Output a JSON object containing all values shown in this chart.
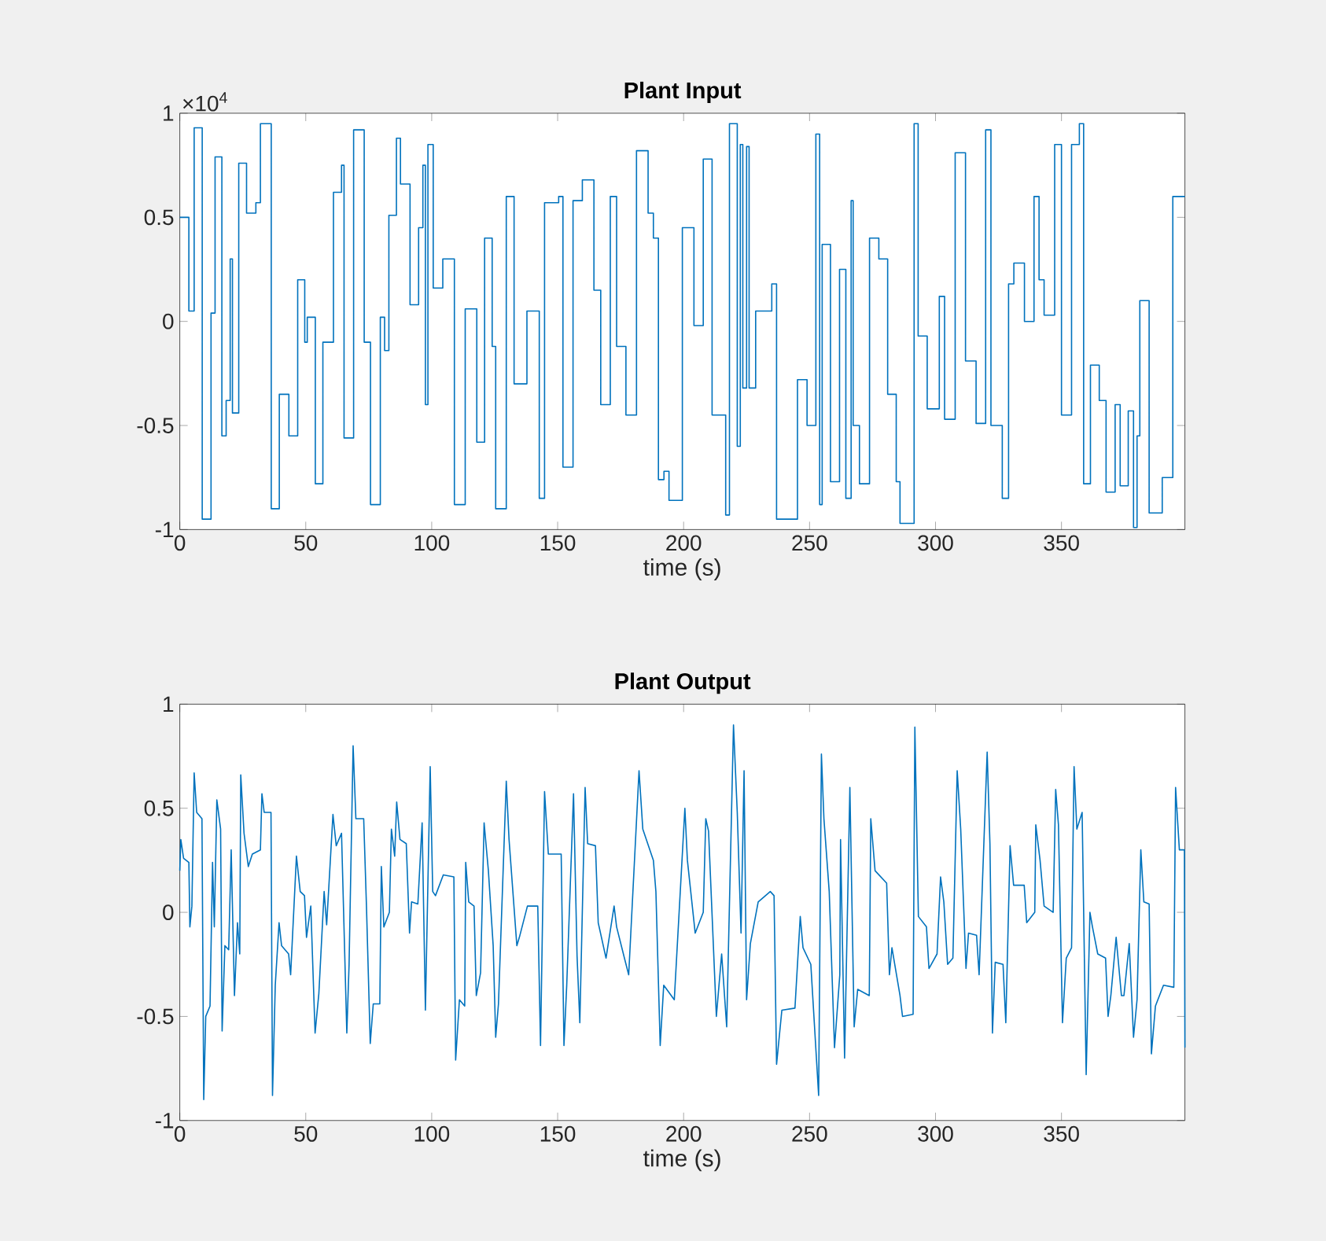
{
  "chart_data": [
    {
      "type": "step",
      "title": "Plant Input",
      "xlabel": "time (s)",
      "annotations": [
        "×10$^{4}$"
      ],
      "x": [
        0,
        3.6,
        5.7,
        8.9,
        12.4,
        14,
        16.7,
        18.4,
        20,
        20.9,
        23.4,
        26.5,
        30.2,
        32,
        36.3,
        39.5,
        43.3,
        46.8,
        49.6,
        50.6,
        53.8,
        56.8,
        61,
        64.2,
        65.2,
        69,
        73.2,
        75.7,
        79.6,
        81.3,
        83,
        86,
        87.6,
        91.4,
        94.8,
        96.5,
        97.5,
        98.5,
        100.6,
        104.4,
        109,
        113.3,
        117.9,
        121,
        124,
        125.4,
        129.6,
        132.7,
        137.8,
        142.7,
        144.8,
        150.4,
        152.1,
        156.1,
        159.8,
        164.4,
        167.1,
        170.9,
        173.4,
        177.1,
        181.3,
        185.9,
        188,
        190,
        192.2,
        194.2,
        199.5,
        204.1,
        207.8,
        211.3,
        216.7,
        218.2,
        221.3,
        222.5,
        223.5,
        225,
        226,
        228.6,
        235,
        236.9,
        245.2,
        249,
        252.5,
        254,
        255,
        258.3,
        261.9,
        264.4,
        266.5,
        267.3,
        269.8,
        273.8,
        277.5,
        281,
        284.4,
        285.9,
        291.5,
        293.1,
        296.7,
        301.5,
        303.6,
        307.8,
        311.9,
        316.1,
        319.9,
        322,
        326.5,
        329,
        331.1,
        335.3,
        339.1,
        341.1,
        343.1,
        347.3,
        350,
        354,
        357.1,
        358.8,
        361.5,
        365,
        367.7,
        371.3,
        373.3,
        376.5,
        378.6,
        380,
        381.1,
        384.8,
        390,
        394.2,
        399
      ],
      "series": [
        {
          "color": "#0072bd",
          "values": [
            0.5,
            0.05,
            0.93,
            -0.95,
            0.04,
            0.79,
            -0.55,
            -0.38,
            0.3,
            -0.44,
            0.76,
            0.52,
            0.57,
            0.95,
            -0.9,
            -0.35,
            -0.55,
            0.2,
            -0.1,
            0.02,
            -0.78,
            -0.1,
            0.62,
            0.75,
            -0.56,
            0.92,
            -0.1,
            -0.88,
            0.02,
            -0.14,
            0.51,
            0.88,
            0.66,
            0.08,
            0.45,
            0.75,
            -0.4,
            0.85,
            0.16,
            0.3,
            -0.88,
            0.06,
            -0.58,
            0.4,
            -0.12,
            -0.9,
            0.6,
            -0.3,
            0.05,
            -0.85,
            0.57,
            0.6,
            -0.7,
            0.58,
            0.68,
            0.15,
            -0.4,
            0.6,
            -0.12,
            -0.45,
            0.82,
            0.52,
            0.4,
            -0.76,
            -0.72,
            -0.86,
            0.45,
            -0.02,
            0.78,
            -0.45,
            -0.93,
            0.95,
            -0.6,
            0.85,
            -0.32,
            0.84,
            -0.32,
            0.05,
            0.18,
            -0.95,
            -0.28,
            -0.5,
            0.9,
            -0.88,
            0.37,
            -0.77,
            0.25,
            -0.85,
            0.58,
            -0.5,
            -0.78,
            0.4,
            0.3,
            -0.35,
            -0.77,
            -0.97,
            0.95,
            -0.07,
            -0.42,
            0.12,
            -0.47,
            0.81,
            -0.19,
            -0.49,
            0.92,
            -0.5,
            -0.85,
            0.18,
            0.28,
            0,
            0.6,
            0.2,
            0.03,
            0.85,
            -0.45,
            0.85,
            0.95,
            -0.78,
            -0.21,
            -0.38,
            -0.82,
            -0.4,
            -0.79,
            -0.43,
            -0.99,
            -0.55,
            0.1,
            -0.92,
            -0.75,
            0.6,
            0.6
          ]
        }
      ],
      "xlim": [
        0,
        399
      ],
      "ylim": [
        -1,
        1
      ],
      "xticks": [
        0,
        50,
        100,
        150,
        200,
        250,
        300,
        350
      ],
      "yticks": [
        -1,
        -0.5,
        0,
        0.5,
        1
      ]
    },
    {
      "type": "line",
      "title": "Plant Output",
      "xlabel": "time (s)",
      "x": [
        0,
        0.4,
        1.5,
        3.6,
        4,
        4.8,
        5.7,
        6.7,
        8.8,
        9.5,
        10.3,
        12,
        13,
        13.7,
        14.7,
        16.2,
        16.8,
        17.9,
        19.4,
        20.4,
        21.7,
        22.9,
        23.8,
        24.2,
        25.5,
        27.2,
        28.8,
        32,
        32.6,
        33.5,
        36.2,
        36.8,
        37.9,
        39.4,
        40.4,
        43.2,
        44,
        46.3,
        47.8,
        49.5,
        50.3,
        52,
        53.7,
        55.2,
        57.3,
        58.3,
        60.8,
        62.1,
        64.2,
        66.3,
        67.2,
        68.8,
        69.9,
        73,
        74.1,
        75.6,
        76.8,
        79.4,
        80,
        81,
        83.2,
        84,
        85.3,
        86.1,
        87.4,
        89.9,
        91.2,
        92,
        94.5,
        96.2,
        97.5,
        99.4,
        100.4,
        101.5,
        104.6,
        108.8,
        109.5,
        111,
        113.1,
        113.5,
        114.7,
        116.8,
        117.7,
        119.4,
        120.8,
        122.5,
        124.4,
        125.4,
        126.5,
        129.6,
        130.7,
        133.8,
        134.8,
        138,
        142.1,
        143.2,
        144.8,
        146.3,
        151.4,
        152.5,
        153.6,
        156.3,
        157.7,
        158.8,
        160.9,
        161.9,
        165,
        166.1,
        169.2,
        172.4,
        173.4,
        176.5,
        178.2,
        182.3,
        183.8,
        188,
        189,
        190.7,
        192.1,
        196.3,
        200.5,
        201.5,
        204.6,
        207.8,
        208.8,
        209.9,
        213,
        215.1,
        217.1,
        219.8,
        221.3,
        222.8,
        224,
        225,
        226.5,
        229.6,
        234.4,
        235.9,
        236.9,
        239,
        244.2,
        246.3,
        247.4,
        250.5,
        253.6,
        254.7,
        255.7,
        257.8,
        259.9,
        262,
        262.3,
        263.9,
        266,
        267.7,
        269.1,
        273.7,
        274.3,
        276,
        280.6,
        281.7,
        282.7,
        285.9,
        286.9,
        291.1,
        291.8,
        293.2,
        296.4,
        297.4,
        300.6,
        302,
        303.3,
        304.8,
        306.9,
        308.6,
        310,
        312.1,
        313.1,
        316.3,
        317.3,
        320.5,
        321.6,
        322.6,
        323.7,
        326.8,
        327.9,
        329.6,
        331,
        335.2,
        336.2,
        339.4,
        339.8,
        341.5,
        343.1,
        346.7,
        347.7,
        348.8,
        350.4,
        351.9,
        354,
        355,
        356.1,
        358.2,
        359.8,
        361.3,
        362.3,
        364.4,
        367.5,
        368.5,
        369.6,
        371.7,
        373.8,
        374.8,
        376.9,
        378.6,
        380,
        381.5,
        382.7,
        384.8,
        385.7,
        387.3,
        390.5,
        394.6,
        395.3,
        396.8,
        398.8,
        399
      ],
      "series": [
        {
          "color": "#0072bd",
          "values": [
            0.2,
            0.35,
            0.26,
            0.24,
            -0.07,
            0.03,
            0.67,
            0.48,
            0.45,
            -0.9,
            -0.5,
            -0.45,
            0.24,
            -0.07,
            0.54,
            0.4,
            -0.57,
            -0.16,
            -0.18,
            0.3,
            -0.4,
            -0.05,
            -0.2,
            0.66,
            0.38,
            0.22,
            0.28,
            0.3,
            0.57,
            0.48,
            0.48,
            -0.88,
            -0.35,
            -0.05,
            -0.16,
            -0.2,
            -0.3,
            0.27,
            0.1,
            0.08,
            -0.12,
            0.03,
            -0.58,
            -0.39,
            0.1,
            -0.06,
            0.47,
            0.32,
            0.38,
            -0.58,
            -0.25,
            0.8,
            0.45,
            0.45,
            0.03,
            -0.63,
            -0.44,
            -0.44,
            0.22,
            -0.07,
            0,
            0.4,
            0.27,
            0.53,
            0.35,
            0.33,
            -0.1,
            0.05,
            0.04,
            0.43,
            -0.47,
            0.7,
            0.1,
            0.08,
            0.18,
            0.17,
            -0.71,
            -0.42,
            -0.45,
            0.24,
            0.05,
            0.03,
            -0.4,
            -0.29,
            0.43,
            0.2,
            -0.16,
            -0.6,
            -0.44,
            0.63,
            0.35,
            -0.16,
            -0.12,
            0.03,
            0.03,
            -0.64,
            0.58,
            0.28,
            0.28,
            -0.64,
            -0.35,
            0.57,
            -0.21,
            -0.53,
            0.6,
            0.33,
            0.32,
            -0.05,
            -0.22,
            0.03,
            -0.07,
            -0.22,
            -0.3,
            0.68,
            0.4,
            0.25,
            0.1,
            -0.64,
            -0.35,
            -0.42,
            0.5,
            0.25,
            -0.1,
            0,
            0.45,
            0.39,
            -0.5,
            -0.2,
            -0.55,
            0.9,
            0.48,
            -0.1,
            0.68,
            -0.42,
            -0.15,
            0.05,
            0.1,
            0.08,
            -0.73,
            -0.47,
            -0.46,
            -0.02,
            -0.17,
            -0.25,
            -0.88,
            0.76,
            0.45,
            0.1,
            -0.65,
            -0.3,
            0.35,
            -0.7,
            0.6,
            -0.55,
            -0.37,
            -0.4,
            0.45,
            0.2,
            0.14,
            -0.3,
            -0.17,
            -0.4,
            -0.5,
            -0.49,
            0.89,
            -0.02,
            -0.07,
            -0.27,
            -0.2,
            0.17,
            0.05,
            -0.25,
            -0.22,
            0.68,
            0.4,
            -0.27,
            -0.1,
            -0.11,
            -0.3,
            0.77,
            0.33,
            -0.58,
            -0.24,
            -0.25,
            -0.53,
            0.32,
            0.13,
            0.13,
            -0.05,
            0,
            0.42,
            0.25,
            0.03,
            0,
            0.59,
            0.42,
            -0.53,
            -0.22,
            -0.17,
            0.7,
            0.4,
            0.48,
            -0.78,
            0,
            -0.07,
            -0.2,
            -0.22,
            -0.5,
            -0.4,
            -0.12,
            -0.4,
            -0.4,
            -0.15,
            -0.6,
            -0.42,
            0.3,
            0.05,
            0.04,
            -0.68,
            -0.45,
            -0.35,
            -0.36,
            0.6,
            0.3,
            0.3,
            -0.65
          ]
        }
      ],
      "xlim": [
        0,
        399
      ],
      "ylim": [
        -1,
        1
      ],
      "xticks": [
        0,
        50,
        100,
        150,
        200,
        250,
        300,
        350
      ],
      "yticks": [
        -1,
        -0.5,
        0,
        0.5,
        1
      ]
    }
  ]
}
